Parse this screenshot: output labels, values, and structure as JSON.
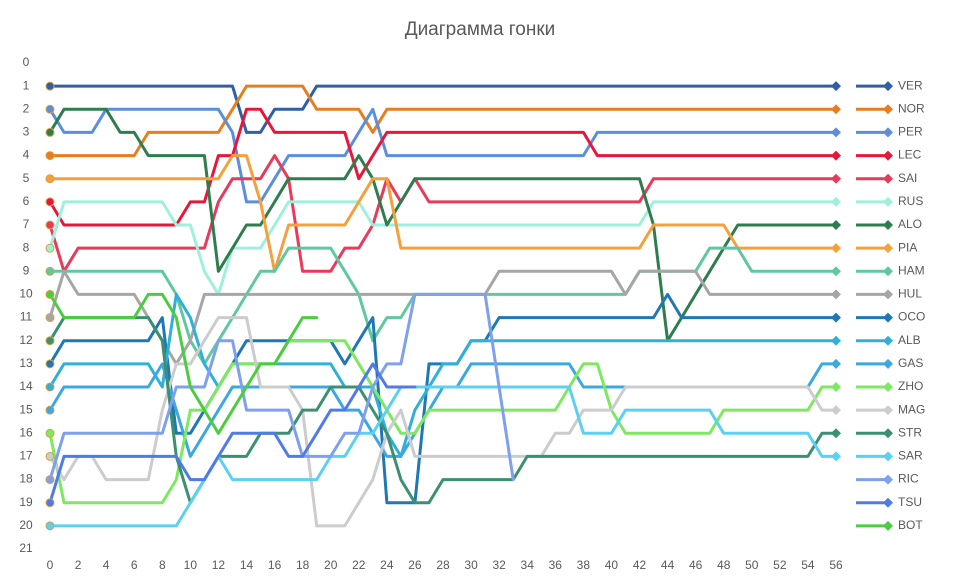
{
  "chart_data": {
    "type": "line",
    "title": "Диаграмма гонки",
    "x": [
      0,
      1,
      2,
      3,
      4,
      5,
      6,
      7,
      8,
      9,
      10,
      11,
      12,
      13,
      14,
      15,
      16,
      17,
      18,
      19,
      20,
      21,
      22,
      23,
      24,
      25,
      26,
      27,
      28,
      29,
      30,
      31,
      32,
      33,
      34,
      35,
      36,
      37,
      38,
      39,
      40,
      41,
      42,
      43,
      44,
      45,
      46,
      47,
      48,
      49,
      50,
      51,
      52,
      53,
      54,
      55,
      56
    ],
    "xlim": [
      0,
      56
    ],
    "xticks": [
      0,
      2,
      4,
      6,
      8,
      10,
      12,
      14,
      16,
      18,
      20,
      22,
      24,
      26,
      28,
      30,
      32,
      34,
      36,
      38,
      40,
      42,
      44,
      46,
      48,
      50,
      52,
      54,
      56
    ],
    "ylim": [
      0,
      21
    ],
    "yticks": [
      0,
      1,
      2,
      3,
      4,
      5,
      6,
      7,
      8,
      9,
      10,
      11,
      12,
      13,
      14,
      15,
      16,
      17,
      18,
      19,
      20,
      21
    ],
    "y_inverted": true,
    "legend": "right",
    "series": [
      {
        "name": "VER",
        "color": "#2e5fa8",
        "values": [
          1,
          1,
          1,
          1,
          1,
          1,
          1,
          1,
          1,
          1,
          1,
          1,
          1,
          1,
          3,
          3,
          2,
          2,
          2,
          1,
          1,
          1,
          1,
          1,
          1,
          1,
          1,
          1,
          1,
          1,
          1,
          1,
          1,
          1,
          1,
          1,
          1,
          1,
          1,
          1,
          1,
          1,
          1,
          1,
          1,
          1,
          1,
          1,
          1,
          1,
          1,
          1,
          1,
          1,
          1,
          1,
          1
        ]
      },
      {
        "name": "NOR",
        "color": "#e87d1e",
        "values": [
          4,
          4,
          4,
          4,
          4,
          4,
          4,
          3,
          3,
          3,
          3,
          3,
          3,
          2,
          1,
          1,
          1,
          1,
          1,
          2,
          2,
          2,
          2,
          3,
          2,
          2,
          2,
          2,
          2,
          2,
          2,
          2,
          2,
          2,
          2,
          2,
          2,
          2,
          2,
          2,
          2,
          2,
          2,
          2,
          2,
          2,
          2,
          2,
          2,
          2,
          2,
          2,
          2,
          2,
          2,
          2,
          2
        ]
      },
      {
        "name": "PER",
        "color": "#5b8fdc",
        "values": [
          2,
          3,
          3,
          3,
          2,
          2,
          2,
          2,
          2,
          2,
          2,
          2,
          2,
          3,
          6,
          6,
          5,
          4,
          4,
          4,
          4,
          4,
          3,
          2,
          4,
          4,
          4,
          4,
          4,
          4,
          4,
          4,
          4,
          4,
          4,
          4,
          4,
          4,
          4,
          3,
          3,
          3,
          3,
          3,
          3,
          3,
          3,
          3,
          3,
          3,
          3,
          3,
          3,
          3,
          3,
          3,
          3
        ]
      },
      {
        "name": "LEC",
        "color": "#e8173a",
        "values": [
          6,
          7,
          7,
          7,
          7,
          7,
          7,
          7,
          7,
          7,
          6,
          6,
          4,
          4,
          2,
          2,
          3,
          3,
          3,
          3,
          3,
          3,
          5,
          4,
          3,
          3,
          3,
          3,
          3,
          3,
          3,
          3,
          3,
          3,
          3,
          3,
          3,
          3,
          3,
          4,
          4,
          4,
          4,
          4,
          4,
          4,
          4,
          4,
          4,
          4,
          4,
          4,
          4,
          4,
          4,
          4,
          4
        ]
      },
      {
        "name": "SAI",
        "color": "#e83a5a",
        "values": [
          7,
          9,
          8,
          8,
          8,
          8,
          8,
          8,
          8,
          8,
          8,
          8,
          6,
          5,
          5,
          5,
          4,
          5,
          9,
          9,
          9,
          8,
          8,
          7,
          5,
          6,
          5,
          6,
          6,
          6,
          6,
          6,
          6,
          6,
          6,
          6,
          6,
          6,
          6,
          6,
          6,
          6,
          6,
          5,
          5,
          5,
          5,
          5,
          5,
          5,
          5,
          5,
          5,
          5,
          5,
          5,
          5
        ]
      },
      {
        "name": "RUS",
        "color": "#9ef0dc",
        "values": [
          8,
          6,
          6,
          6,
          6,
          6,
          6,
          6,
          6,
          7,
          7,
          9,
          10,
          8,
          8,
          8,
          7,
          6,
          6,
          6,
          6,
          6,
          6,
          7,
          7,
          7,
          7,
          7,
          7,
          7,
          7,
          7,
          7,
          7,
          7,
          7,
          7,
          7,
          7,
          7,
          7,
          7,
          7,
          6,
          6,
          6,
          6,
          6,
          6,
          6,
          6,
          6,
          6,
          6,
          6,
          6,
          6
        ]
      },
      {
        "name": "ALO",
        "color": "#2e7d4f",
        "values": [
          3,
          2,
          2,
          2,
          2,
          3,
          3,
          4,
          4,
          4,
          4,
          4,
          9,
          8,
          7,
          7,
          6,
          5,
          5,
          5,
          5,
          5,
          4,
          5,
          7,
          6,
          5,
          5,
          5,
          5,
          5,
          5,
          5,
          5,
          5,
          5,
          5,
          5,
          5,
          5,
          5,
          5,
          5,
          7,
          12,
          11,
          10,
          9,
          8,
          7,
          7,
          7,
          7,
          7,
          7,
          7,
          7
        ]
      },
      {
        "name": "PIA",
        "color": "#f5a03c",
        "values": [
          5,
          5,
          5,
          5,
          5,
          5,
          5,
          5,
          5,
          5,
          5,
          5,
          5,
          4,
          4,
          6,
          9,
          7,
          7,
          7,
          7,
          7,
          6,
          5,
          5,
          8,
          8,
          8,
          8,
          8,
          8,
          8,
          8,
          8,
          8,
          8,
          8,
          8,
          8,
          8,
          8,
          8,
          8,
          7,
          7,
          7,
          7,
          7,
          7,
          8,
          8,
          8,
          8,
          8,
          8,
          8,
          8
        ]
      },
      {
        "name": "HAM",
        "color": "#60c8a0",
        "values": [
          9,
          9,
          9,
          9,
          9,
          9,
          9,
          9,
          9,
          10,
          12,
          13,
          12,
          11,
          10,
          9,
          9,
          8,
          8,
          8,
          8,
          9,
          10,
          12,
          11,
          11,
          10,
          10,
          10,
          10,
          10,
          10,
          10,
          10,
          10,
          10,
          10,
          10,
          10,
          10,
          10,
          10,
          9,
          9,
          9,
          9,
          9,
          8,
          8,
          8,
          9,
          9,
          9,
          9,
          9,
          9,
          9
        ]
      },
      {
        "name": "HUL",
        "color": "#a6a6a6",
        "values": [
          11,
          9,
          10,
          10,
          10,
          10,
          10,
          11,
          12,
          13,
          12,
          10,
          10,
          10,
          10,
          10,
          10,
          10,
          10,
          10,
          10,
          10,
          10,
          10,
          10,
          10,
          10,
          10,
          10,
          10,
          10,
          10,
          9,
          9,
          9,
          9,
          9,
          9,
          9,
          9,
          9,
          10,
          9,
          9,
          9,
          9,
          9,
          10,
          10,
          10,
          10,
          10,
          10,
          10,
          10,
          10,
          10
        ]
      },
      {
        "name": "OCO",
        "color": "#1f78b4",
        "values": [
          13,
          12,
          12,
          12,
          12,
          12,
          12,
          12,
          11,
          16,
          16,
          15,
          14,
          13,
          12,
          12,
          12,
          12,
          12,
          12,
          12,
          13,
          12,
          11,
          19,
          19,
          19,
          13,
          13,
          13,
          12,
          12,
          11,
          11,
          11,
          11,
          11,
          11,
          11,
          11,
          11,
          11,
          11,
          11,
          10,
          11,
          11,
          11,
          11,
          11,
          11,
          11,
          11,
          11,
          11,
          11,
          11
        ]
      },
      {
        "name": "ALB",
        "color": "#30b0d8",
        "values": [
          14,
          13,
          13,
          13,
          13,
          13,
          13,
          13,
          14,
          10,
          11,
          13,
          14,
          13,
          13,
          13,
          13,
          13,
          13,
          13,
          13,
          14,
          14,
          14,
          16,
          17,
          15,
          14,
          13,
          13,
          12,
          12,
          12,
          12,
          12,
          12,
          12,
          12,
          12,
          12,
          12,
          12,
          12,
          12,
          12,
          12,
          12,
          12,
          12,
          12,
          12,
          12,
          12,
          12,
          12,
          12,
          12
        ]
      },
      {
        "name": "GAS",
        "color": "#3ca8e0",
        "values": [
          15,
          14,
          14,
          14,
          14,
          14,
          14,
          14,
          13,
          15,
          17,
          16,
          15,
          14,
          14,
          14,
          14,
          14,
          14,
          14,
          14,
          15,
          15,
          16,
          17,
          17,
          16,
          15,
          14,
          14,
          13,
          13,
          13,
          13,
          13,
          13,
          13,
          13,
          14,
          14,
          14,
          14,
          14,
          14,
          14,
          14,
          14,
          14,
          14,
          14,
          14,
          14,
          14,
          14,
          14,
          13,
          13
        ]
      },
      {
        "name": "ZHO",
        "color": "#7ee860",
        "values": [
          16,
          19,
          19,
          19,
          19,
          19,
          19,
          19,
          19,
          18,
          15,
          15,
          14,
          13,
          13,
          13,
          13,
          12,
          12,
          12,
          12,
          12,
          13,
          14,
          15,
          16,
          16,
          15,
          15,
          15,
          15,
          15,
          15,
          15,
          15,
          15,
          15,
          14,
          13,
          13,
          15,
          16,
          16,
          16,
          16,
          16,
          16,
          16,
          15,
          15,
          15,
          15,
          15,
          15,
          15,
          14,
          14
        ]
      },
      {
        "name": "MAG",
        "color": "#cccccc",
        "values": [
          17,
          18,
          17,
          17,
          18,
          18,
          18,
          18,
          15,
          13,
          13,
          12,
          11,
          11,
          11,
          14,
          14,
          14,
          15,
          20,
          20,
          20,
          19,
          18,
          16,
          15,
          17,
          17,
          17,
          17,
          17,
          17,
          17,
          17,
          17,
          17,
          16,
          16,
          15,
          15,
          15,
          14,
          14,
          14,
          14,
          14,
          14,
          14,
          14,
          14,
          14,
          14,
          14,
          14,
          14,
          15,
          15
        ]
      },
      {
        "name": "STR",
        "color": "#3a9070",
        "values": [
          12,
          11,
          11,
          11,
          11,
          11,
          11,
          11,
          12,
          17,
          19,
          18,
          17,
          17,
          17,
          16,
          16,
          16,
          15,
          15,
          14,
          14,
          14,
          15,
          16,
          18,
          19,
          19,
          18,
          18,
          18,
          18,
          18,
          18,
          17,
          17,
          17,
          17,
          17,
          17,
          17,
          17,
          17,
          17,
          17,
          17,
          17,
          17,
          17,
          17,
          17,
          17,
          17,
          17,
          17,
          16,
          16
        ]
      },
      {
        "name": "SAR",
        "color": "#5cd0f0",
        "values": [
          20,
          20,
          20,
          20,
          20,
          20,
          20,
          20,
          20,
          20,
          19,
          18,
          17,
          18,
          18,
          18,
          18,
          18,
          18,
          18,
          17,
          17,
          16,
          16,
          15,
          14,
          14,
          14,
          14,
          14,
          14,
          14,
          14,
          14,
          14,
          14,
          14,
          14,
          16,
          16,
          16,
          15,
          15,
          15,
          15,
          15,
          15,
          15,
          16,
          16,
          16,
          16,
          16,
          16,
          16,
          17,
          17
        ]
      },
      {
        "name": "RIC",
        "color": "#7fa0ec",
        "values": [
          18,
          16,
          16,
          16,
          16,
          16,
          16,
          16,
          16,
          14,
          14,
          14,
          12,
          12,
          15,
          15,
          15,
          15,
          17,
          17,
          17,
          16,
          16,
          14,
          13,
          13,
          10,
          10,
          10,
          10,
          10,
          10,
          14,
          18,
          null,
          null,
          null,
          null,
          null,
          null,
          null,
          null,
          null,
          null,
          null,
          null,
          null,
          null,
          null,
          null,
          null,
          null,
          null,
          null,
          null,
          null,
          null
        ]
      },
      {
        "name": "TSU",
        "color": "#4f7be8",
        "values": [
          19,
          17,
          17,
          17,
          17,
          17,
          17,
          17,
          17,
          17,
          18,
          18,
          17,
          16,
          16,
          16,
          16,
          17,
          17,
          16,
          15,
          15,
          14,
          13,
          14,
          14,
          14,
          null,
          null,
          null,
          null,
          null,
          null,
          null,
          null,
          null,
          null,
          null,
          null,
          null,
          null,
          null,
          null,
          null,
          null,
          null,
          null,
          null,
          null,
          null,
          null,
          null,
          null,
          null,
          null,
          null,
          null
        ]
      },
      {
        "name": "BOT",
        "color": "#4ccc40",
        "values": [
          10,
          11,
          11,
          11,
          11,
          11,
          11,
          10,
          10,
          11,
          14,
          15,
          16,
          15,
          14,
          13,
          13,
          12,
          11,
          11,
          null,
          null,
          null,
          null,
          null,
          null,
          null,
          null,
          null,
          null,
          null,
          null,
          null,
          null,
          null,
          null,
          null,
          null,
          null,
          null,
          null,
          null,
          null,
          null,
          null,
          null,
          null,
          null,
          null,
          null,
          null,
          null,
          null,
          null,
          null,
          null,
          null
        ]
      }
    ]
  }
}
